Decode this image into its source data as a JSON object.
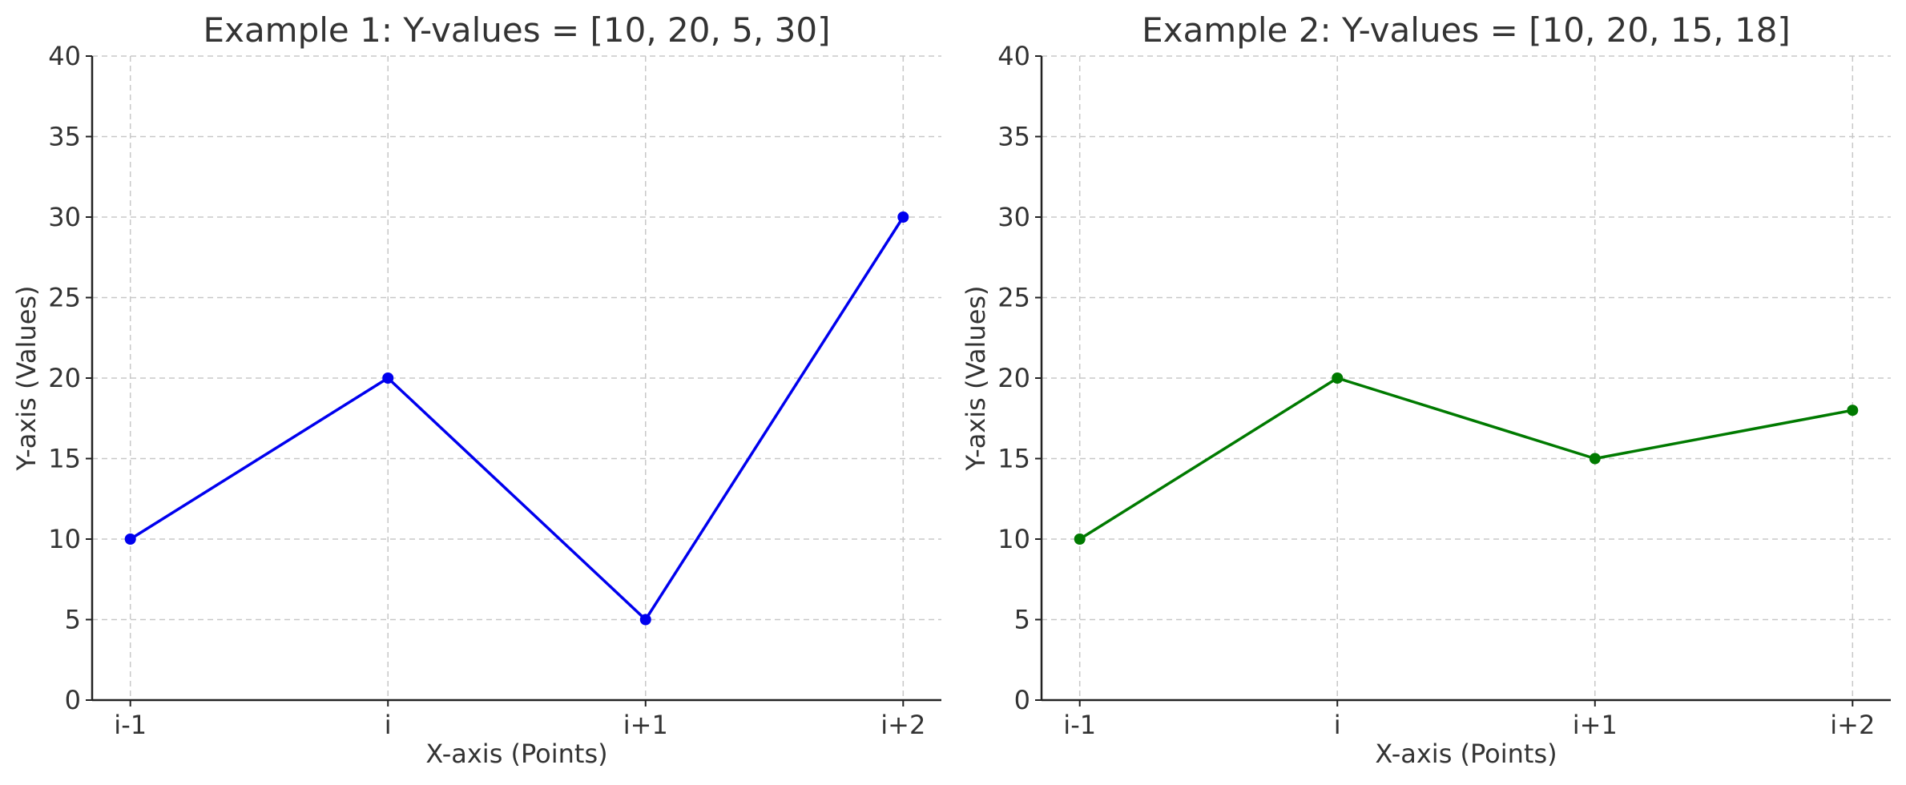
{
  "chart_data": [
    {
      "type": "line",
      "title": "Example 1: Y-values = [10, 20, 5, 30]",
      "xlabel": "X-axis (Points)",
      "ylabel": "Y-axis (Values)",
      "categories": [
        "i-1",
        "i",
        "i+1",
        "i+2"
      ],
      "series": [
        {
          "name": "Y-values",
          "values": [
            10,
            20,
            5,
            30
          ],
          "color": "#0000ee"
        }
      ],
      "ylim": [
        0,
        40
      ],
      "yticks": [
        0,
        5,
        10,
        15,
        20,
        25,
        30,
        35,
        40
      ],
      "grid": true,
      "marker": "circle"
    },
    {
      "type": "line",
      "title": "Example 2: Y-values = [10, 20, 15, 18]",
      "xlabel": "X-axis (Points)",
      "ylabel": "Y-axis (Values)",
      "categories": [
        "i-1",
        "i",
        "i+1",
        "i+2"
      ],
      "series": [
        {
          "name": "Y-values",
          "values": [
            10,
            20,
            15,
            18
          ],
          "color": "#007a00"
        }
      ],
      "ylim": [
        0,
        40
      ],
      "yticks": [
        0,
        5,
        10,
        15,
        20,
        25,
        30,
        35,
        40
      ],
      "grid": true,
      "marker": "circle"
    }
  ]
}
